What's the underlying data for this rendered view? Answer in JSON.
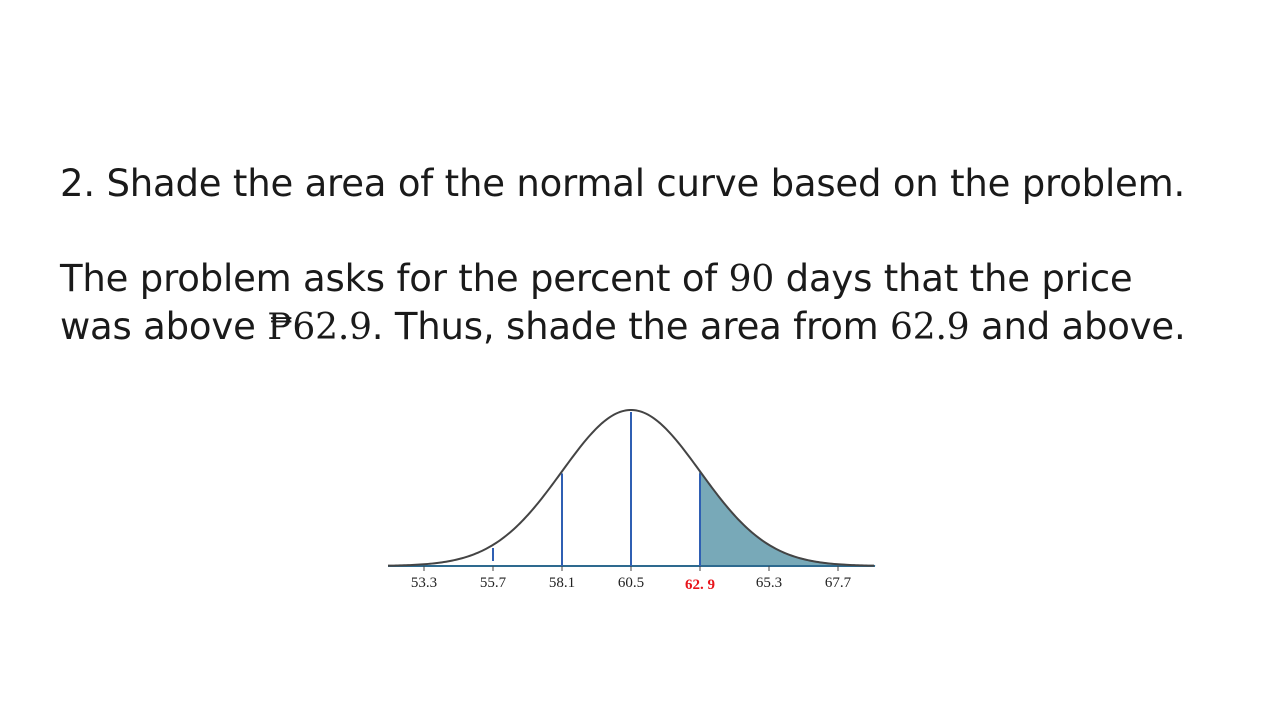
{
  "slide": {
    "heading": "2. Shade the area of the normal curve based on the problem.",
    "line1": {
      "before": "The problem asks for the percent of ",
      "days": "90",
      "after": " days that the price"
    },
    "line2": {
      "before": "was above ",
      "price": "₱62.9",
      "middle": ". Thus, shade the area from ",
      "value": "62.9",
      "after": " and above."
    }
  },
  "figure": {
    "mean": 60.5,
    "sd": 2.4,
    "shade_from": 62.9,
    "tick_labels": [
      "53.3",
      "55.7",
      "58.1",
      "60.5",
      "62. 9",
      "65.3",
      "67.7"
    ],
    "tick_values": [
      53.3,
      55.7,
      58.1,
      60.5,
      62.9,
      65.3,
      67.7
    ],
    "highlight_index": 4,
    "colors": {
      "curve": "#444444",
      "divider": "#2f5fb3",
      "shade": "#78a9b8",
      "shade_edge": "#2e6a8f",
      "highlight": "#e8141b"
    }
  }
}
